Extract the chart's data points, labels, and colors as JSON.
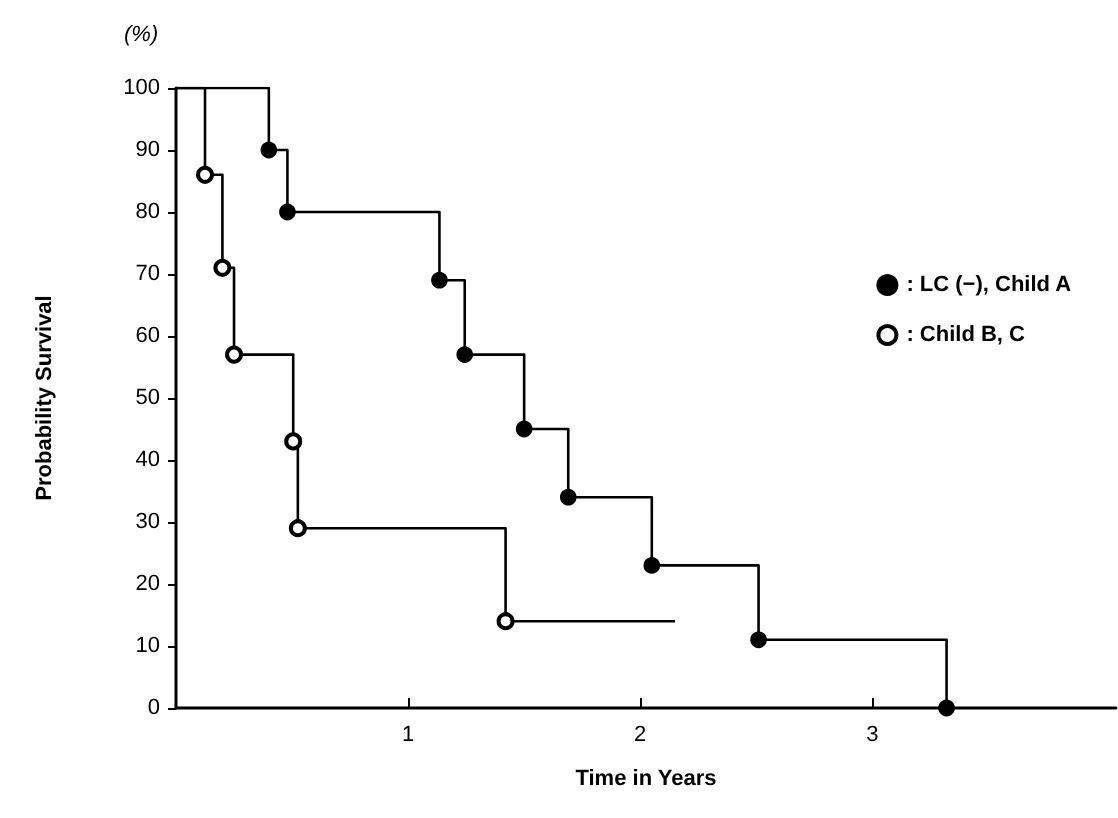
{
  "chart_data": {
    "type": "step",
    "xlabel": "Time in Years",
    "ylabel": "Probability Survival",
    "annotations": [
      "(%)"
    ],
    "series": [
      {
        "name": ": LC (−), Child A",
        "color": "#000000",
        "x": [
          0,
          0.4,
          0.48,
          1.135,
          1.244,
          1.5,
          1.69,
          2.05,
          2.51,
          3.32
        ],
        "values": [
          100,
          90,
          80,
          69,
          57,
          45,
          34,
          23,
          11,
          0
        ]
      },
      {
        "name": ": Child B, C",
        "color": "#000000",
        "x": [
          0,
          0.125,
          0.2,
          0.25,
          0.505,
          0.525,
          1.42,
          2.15
        ],
        "values": [
          100,
          86,
          71,
          57,
          43,
          29,
          14,
          14
        ]
      }
    ],
    "xlim": [
      0,
      4.05
    ],
    "xticks": [
      1,
      2,
      3
    ],
    "ylim": [
      0,
      100
    ],
    "yticks": [
      0,
      10,
      20,
      30,
      40,
      50,
      60,
      70,
      80,
      90,
      100
    ],
    "grid": false,
    "legend": "top right",
    "marker": "circle",
    "line_style": "solid"
  }
}
